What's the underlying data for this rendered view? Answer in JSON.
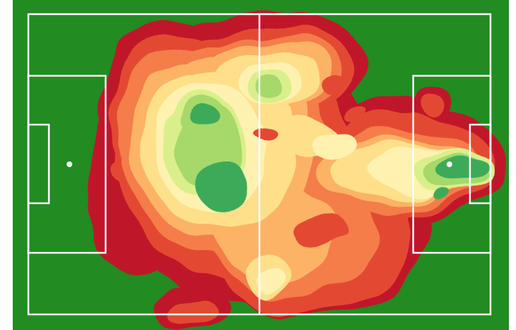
{
  "pitch": {
    "grass_color": "#228B22",
    "line_color": "#FFFFFF"
  },
  "heatmap": {
    "colormap": "RdYlGn",
    "levels": [
      {
        "name": "level-1",
        "color": "#C0182A"
      },
      {
        "name": "level-2",
        "color": "#E34A33"
      },
      {
        "name": "level-3",
        "color": "#F47D4A"
      },
      {
        "name": "level-4",
        "color": "#FDB365"
      },
      {
        "name": "level-5",
        "color": "#FEE08B"
      },
      {
        "name": "level-6",
        "color": "#FFF1B0"
      },
      {
        "name": "level-7",
        "color": "#D9EF8B"
      },
      {
        "name": "level-8",
        "color": "#A6D96A"
      },
      {
        "name": "level-9",
        "color": "#3CAA5A"
      }
    ]
  }
}
